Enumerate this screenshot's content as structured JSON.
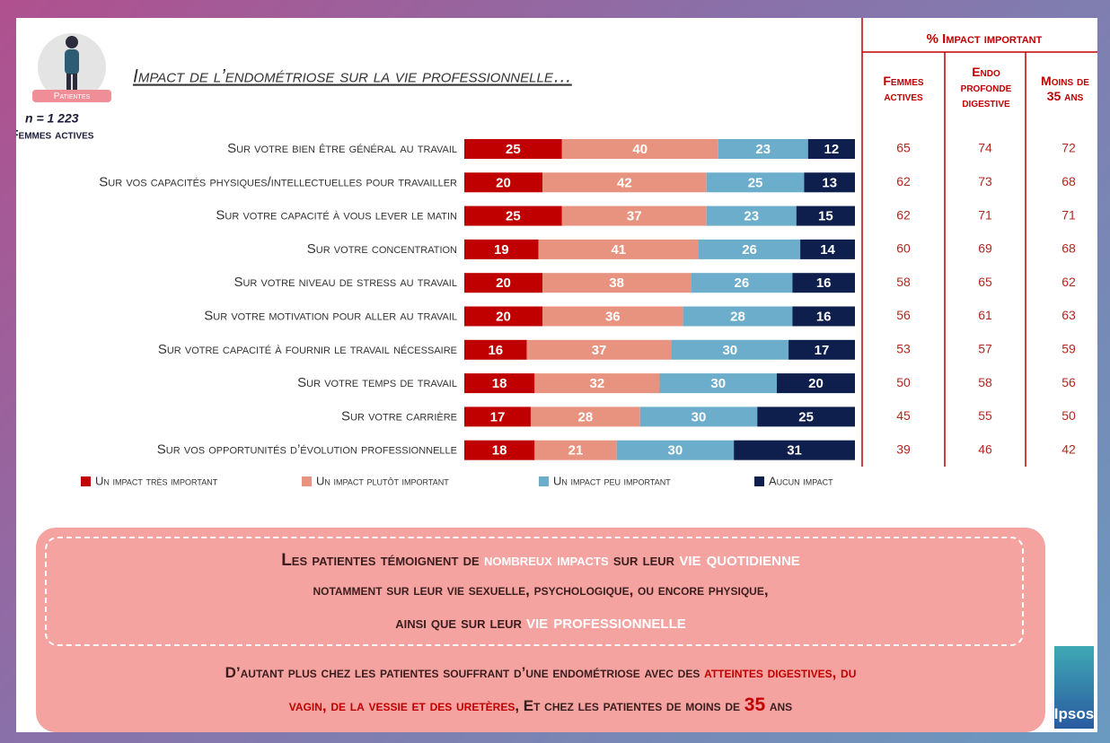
{
  "badge": "Patientes",
  "sample": "n = 1 223",
  "sample_label": "Femmes actives",
  "chart_data": {
    "type": "bar",
    "orientation": "horizontal",
    "stacked": true,
    "title": "Impact de l’endométriose sur la vie professionnelle…",
    "categories": [
      "Sur votre bien être général au travail",
      "Sur vos capacités physiques/intellectuelles pour travailler",
      "Sur votre capacité à vous lever le matin",
      "Sur votre concentration",
      "Sur votre niveau de stress au travail",
      "Sur votre motivation pour aller au travail",
      "Sur votre capacité à fournir le travail nécessaire",
      "Sur votre temps de travail",
      "Sur votre carrière",
      "Sur vos opportunités d’évolution professionnelle"
    ],
    "series": [
      {
        "name": "Un impact très important",
        "color": "#c00000",
        "values": [
          25,
          20,
          25,
          19,
          20,
          20,
          16,
          18,
          17,
          18
        ]
      },
      {
        "name": "Un impact plutôt important",
        "color": "#e8937f",
        "values": [
          40,
          42,
          37,
          41,
          38,
          36,
          37,
          32,
          28,
          21
        ]
      },
      {
        "name": "Un impact peu important",
        "color": "#6badca",
        "values": [
          23,
          25,
          23,
          26,
          26,
          28,
          30,
          30,
          30,
          30
        ]
      },
      {
        "name": "Aucun impact",
        "color": "#0f1f4d",
        "values": [
          12,
          13,
          15,
          14,
          16,
          16,
          17,
          20,
          25,
          31
        ]
      }
    ],
    "legend": "bottom"
  },
  "table": {
    "title": "% Impact important",
    "columns": [
      "Femmes actives",
      "Endo profonde digestive",
      "Moins de 35 ans"
    ],
    "rows": [
      [
        65,
        74,
        72
      ],
      [
        62,
        73,
        68
      ],
      [
        62,
        71,
        71
      ],
      [
        60,
        69,
        68
      ],
      [
        58,
        65,
        62
      ],
      [
        56,
        61,
        63
      ],
      [
        53,
        57,
        59
      ],
      [
        50,
        58,
        56
      ],
      [
        45,
        55,
        50
      ],
      [
        39,
        46,
        42
      ]
    ]
  },
  "callout": {
    "lines": [
      [
        "Les patientes témoignent de ",
        "nombreux impacts",
        " sur leur ",
        "vie quotidienne"
      ],
      [
        "notamment sur leur vie sexuelle, psychologique, ou encore physique,"
      ],
      [
        "ainsi que sur leur ",
        "vie professionnelle"
      ],
      [
        "D’autant plus chez les patientes souffrant d’une endométriose avec des ",
        "atteintes digestives, du"
      ],
      [
        "vagin, de la vessie et des uretères",
        ", Et chez les patientes de moins de ",
        "35",
        " ans"
      ]
    ]
  },
  "logo": "Ipsos"
}
